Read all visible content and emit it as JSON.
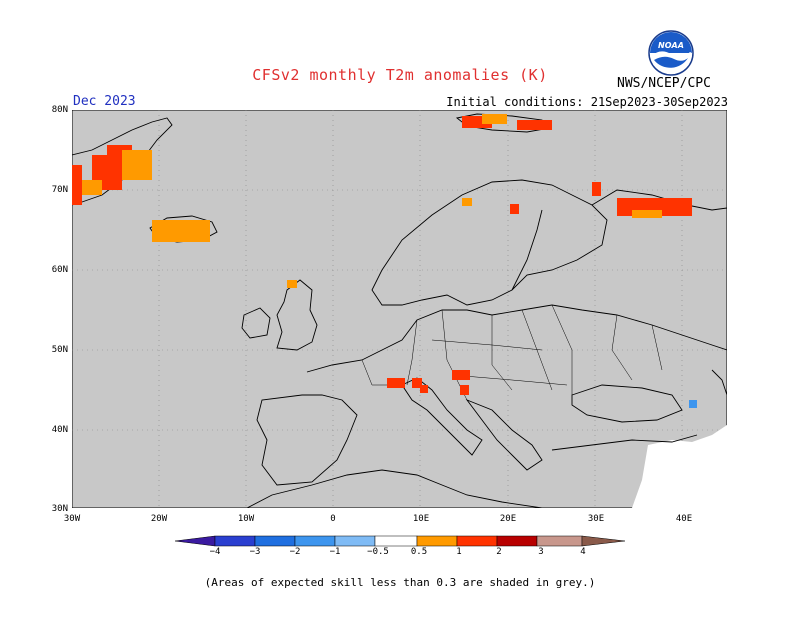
{
  "header": {
    "title": "CFSv2 monthly T2m anomalies (K)",
    "month": "Dec 2023",
    "initial_conditions": "Initial conditions: 21Sep2023-30Sep2023",
    "source": "NWS/NCEP/CPC",
    "logo_text": "NOAA"
  },
  "map": {
    "region": "Europe",
    "lat_labels": [
      "80N",
      "70N",
      "60N",
      "50N",
      "40N",
      "30N"
    ],
    "lon_labels": [
      "30W",
      "20W",
      "10W",
      "0",
      "10E",
      "20E",
      "30E",
      "40E"
    ],
    "background_color": "#c8c8c8",
    "land_border_color": "#000000",
    "anomaly_regions": [
      {
        "name": "greenland-east",
        "category": "1-2"
      },
      {
        "name": "iceland",
        "category": "0.5-1"
      },
      {
        "name": "svalbard",
        "category": "1-2"
      },
      {
        "name": "northern-scandinavia",
        "category": "1-2"
      },
      {
        "name": "kola-peninsula",
        "category": "1-2"
      },
      {
        "name": "scotland",
        "category": "0.5-1"
      },
      {
        "name": "alps-slovenia",
        "category": "1-2"
      },
      {
        "name": "caucasus",
        "category": "-1 - -0.5"
      }
    ]
  },
  "colorbar": {
    "labels": [
      "−4",
      "−3",
      "−2",
      "−1",
      "−0.5",
      "0.5",
      "1",
      "2",
      "3",
      "4"
    ],
    "colors": [
      "#3a1aa0",
      "#2a3fd0",
      "#1f6fe0",
      "#3d95ee",
      "#7fbbf5",
      "#ffffff",
      "#ff9a00",
      "#ff3300",
      "#e00000",
      "#8b0000",
      "#c8978c",
      "#8a5a4a"
    ]
  },
  "note": "(Areas of expected skill less than 0.3 are shaded in grey.)"
}
